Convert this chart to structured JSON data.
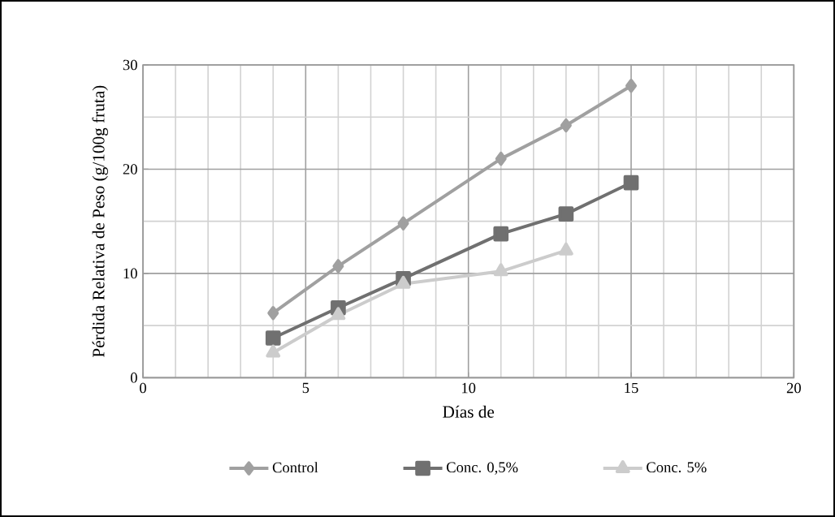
{
  "chart_data": {
    "type": "line",
    "xlabel": "Días de",
    "ylabel": "Pérdida Relativa  de Peso (g/100g fruta)",
    "x": [
      4,
      6,
      8,
      11,
      13,
      15
    ],
    "series": [
      {
        "name": "Control",
        "color": "#a0a0a0",
        "marker": "diamond",
        "values": [
          6.2,
          10.7,
          14.8,
          21.0,
          24.2,
          28.0
        ]
      },
      {
        "name": "Conc. 0,5%",
        "color": "#707070",
        "marker": "square",
        "values": [
          3.8,
          6.7,
          9.5,
          13.8,
          15.7,
          18.7
        ]
      },
      {
        "name": "Conc. 5%",
        "color": "#cccccc",
        "marker": "triangle",
        "values": [
          2.4,
          6.0,
          9.0,
          10.2,
          12.2,
          null
        ]
      }
    ],
    "xlim": [
      0,
      20
    ],
    "ylim": [
      0,
      30
    ],
    "xticks": [
      0,
      5,
      10,
      15,
      20
    ],
    "yticks": [
      0,
      10,
      20,
      30
    ],
    "grid": true,
    "legend": "bottom"
  }
}
